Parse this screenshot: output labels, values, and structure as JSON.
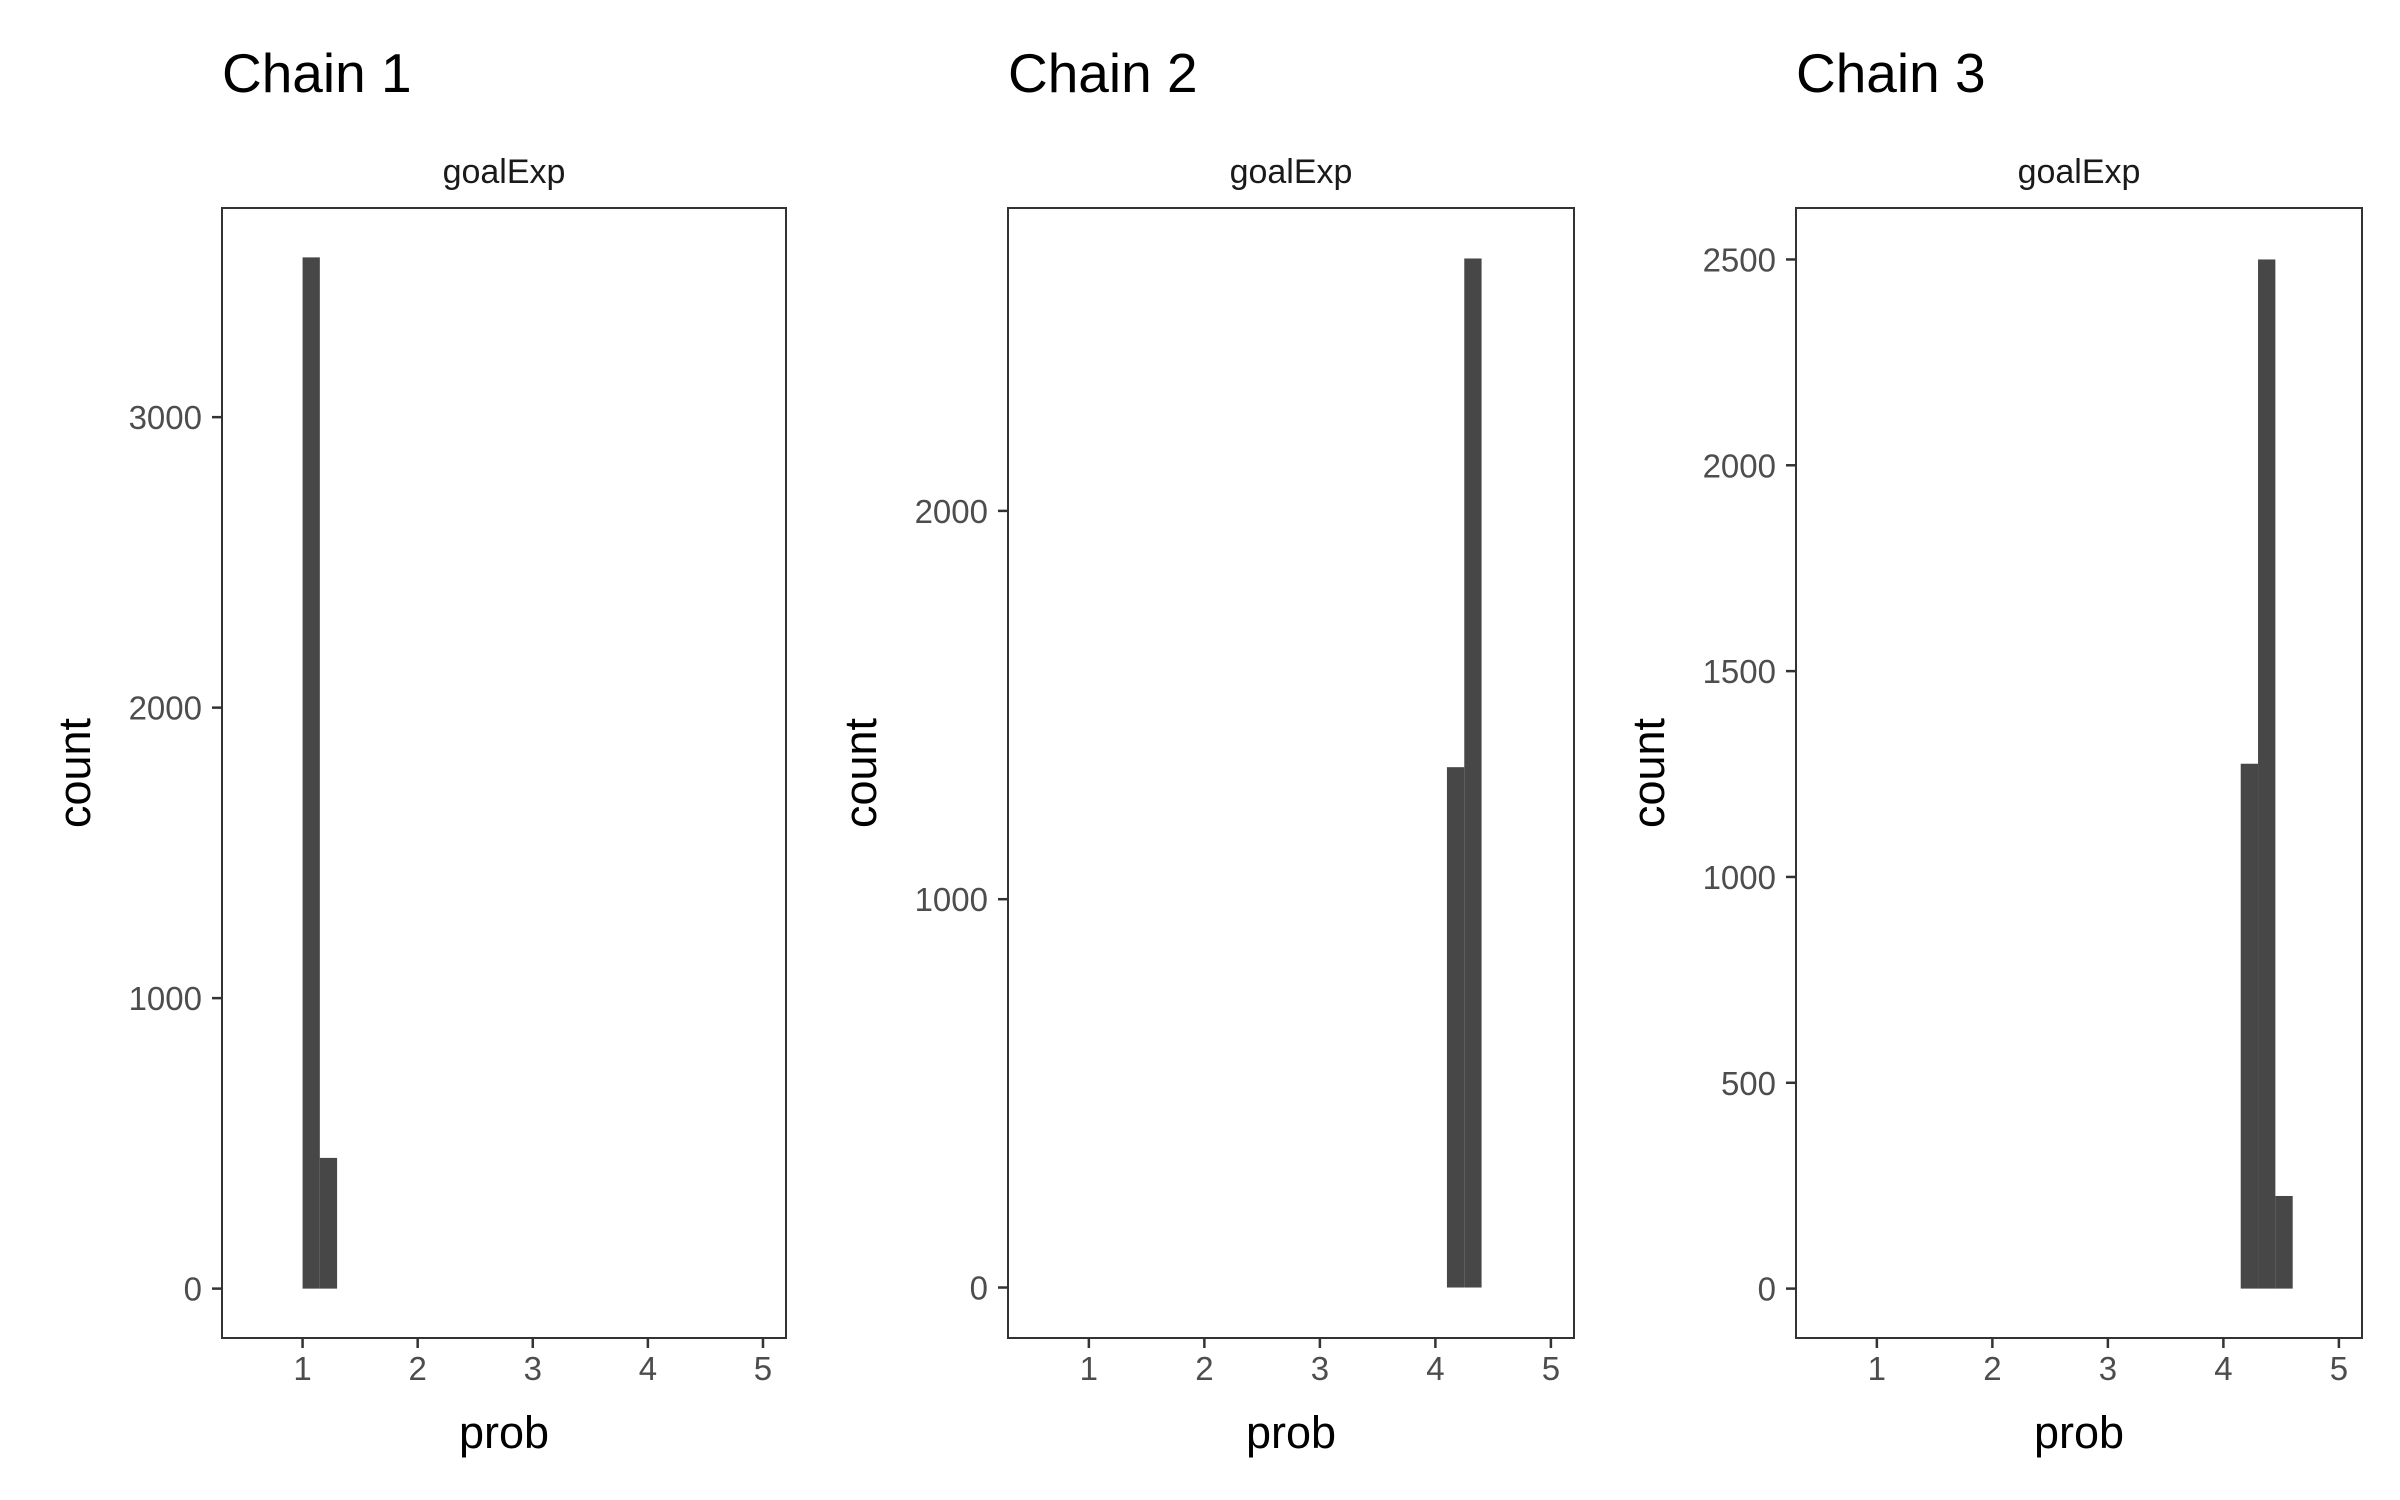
{
  "chart_data": [
    {
      "type": "bar",
      "title": "Chain 1",
      "facet": "goalExp",
      "xlabel": "prob",
      "ylabel": "count",
      "xlim": [
        0.3,
        5.2
      ],
      "ylim": [
        -170,
        3720
      ],
      "xticks": [
        1,
        2,
        3,
        4,
        5
      ],
      "yticks": [
        0,
        1000,
        2000,
        3000
      ],
      "bin_width": 0.15,
      "bins": [
        {
          "x": 1.075,
          "count": 3550
        },
        {
          "x": 1.225,
          "count": 450
        }
      ]
    },
    {
      "type": "bar",
      "title": "Chain 2",
      "facet": "goalExp",
      "xlabel": "prob",
      "ylabel": "count",
      "xlim": [
        0.3,
        5.2
      ],
      "ylim": [
        -130,
        2780
      ],
      "xticks": [
        1,
        2,
        3,
        4,
        5
      ],
      "yticks": [
        0,
        1000,
        2000
      ],
      "bin_width": 0.15,
      "bins": [
        {
          "x": 4.175,
          "count": 1340
        },
        {
          "x": 4.325,
          "count": 2650
        }
      ]
    },
    {
      "type": "bar",
      "title": "Chain 3",
      "facet": "goalExp",
      "xlabel": "prob",
      "ylabel": "count",
      "xlim": [
        0.3,
        5.2
      ],
      "ylim": [
        -120,
        2625
      ],
      "xticks": [
        1,
        2,
        3,
        4,
        5
      ],
      "yticks": [
        0,
        500,
        1000,
        1500,
        2000,
        2500
      ],
      "bin_width": 0.15,
      "bins": [
        {
          "x": 4.225,
          "count": 1275
        },
        {
          "x": 4.375,
          "count": 2500
        },
        {
          "x": 4.525,
          "count": 225
        }
      ]
    }
  ]
}
